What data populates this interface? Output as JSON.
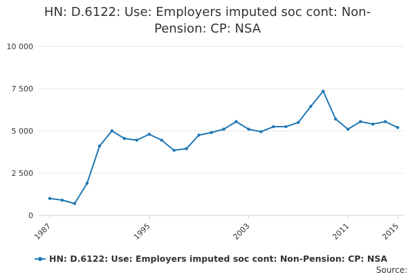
{
  "page": {
    "title": "HN: D.6122: Use: Employers imputed soc cont: Non-Pension: CP: NSA",
    "source_label": "Source:"
  },
  "colors": {
    "series": "#1f77b4",
    "grid": "#e6e6e6",
    "axis": "#cccccc",
    "text": "#333333"
  },
  "chart_data": {
    "type": "line",
    "title": "HN: D.6122: Use: Employers imputed soc cont: Non-Pension: CP: NSA",
    "xlabel": "",
    "ylabel": "",
    "xlim": [
      1987,
      2015
    ],
    "ylim": [
      0,
      10000
    ],
    "x_ticks": [
      1987,
      1995,
      2003,
      2011,
      2015
    ],
    "y_ticks": [
      0,
      2500,
      5000,
      7500,
      10000
    ],
    "y_tick_labels": [
      "0",
      "2 500",
      "5 000",
      "7 500",
      "10 000"
    ],
    "grid": true,
    "legend": "bottom",
    "series": [
      {
        "name": "HN: D.6122: Use: Employers imputed soc cont: Non-Pension: CP: NSA",
        "x": [
          1987,
          1988,
          1989,
          1990,
          1991,
          1992,
          1993,
          1994,
          1995,
          1996,
          1997,
          1998,
          1999,
          2000,
          2001,
          2002,
          2003,
          2004,
          2005,
          2006,
          2007,
          2008,
          2009,
          2010,
          2011,
          2012,
          2013,
          2014,
          2015
        ],
        "values": [
          1000,
          900,
          700,
          1900,
          4100,
          5000,
          4550,
          4450,
          4800,
          4450,
          3850,
          3950,
          4750,
          4900,
          5100,
          5550,
          5100,
          4950,
          5250,
          5250,
          5500,
          6450,
          7350,
          5700,
          5100,
          5550,
          5400,
          5550,
          5200
        ]
      }
    ]
  }
}
